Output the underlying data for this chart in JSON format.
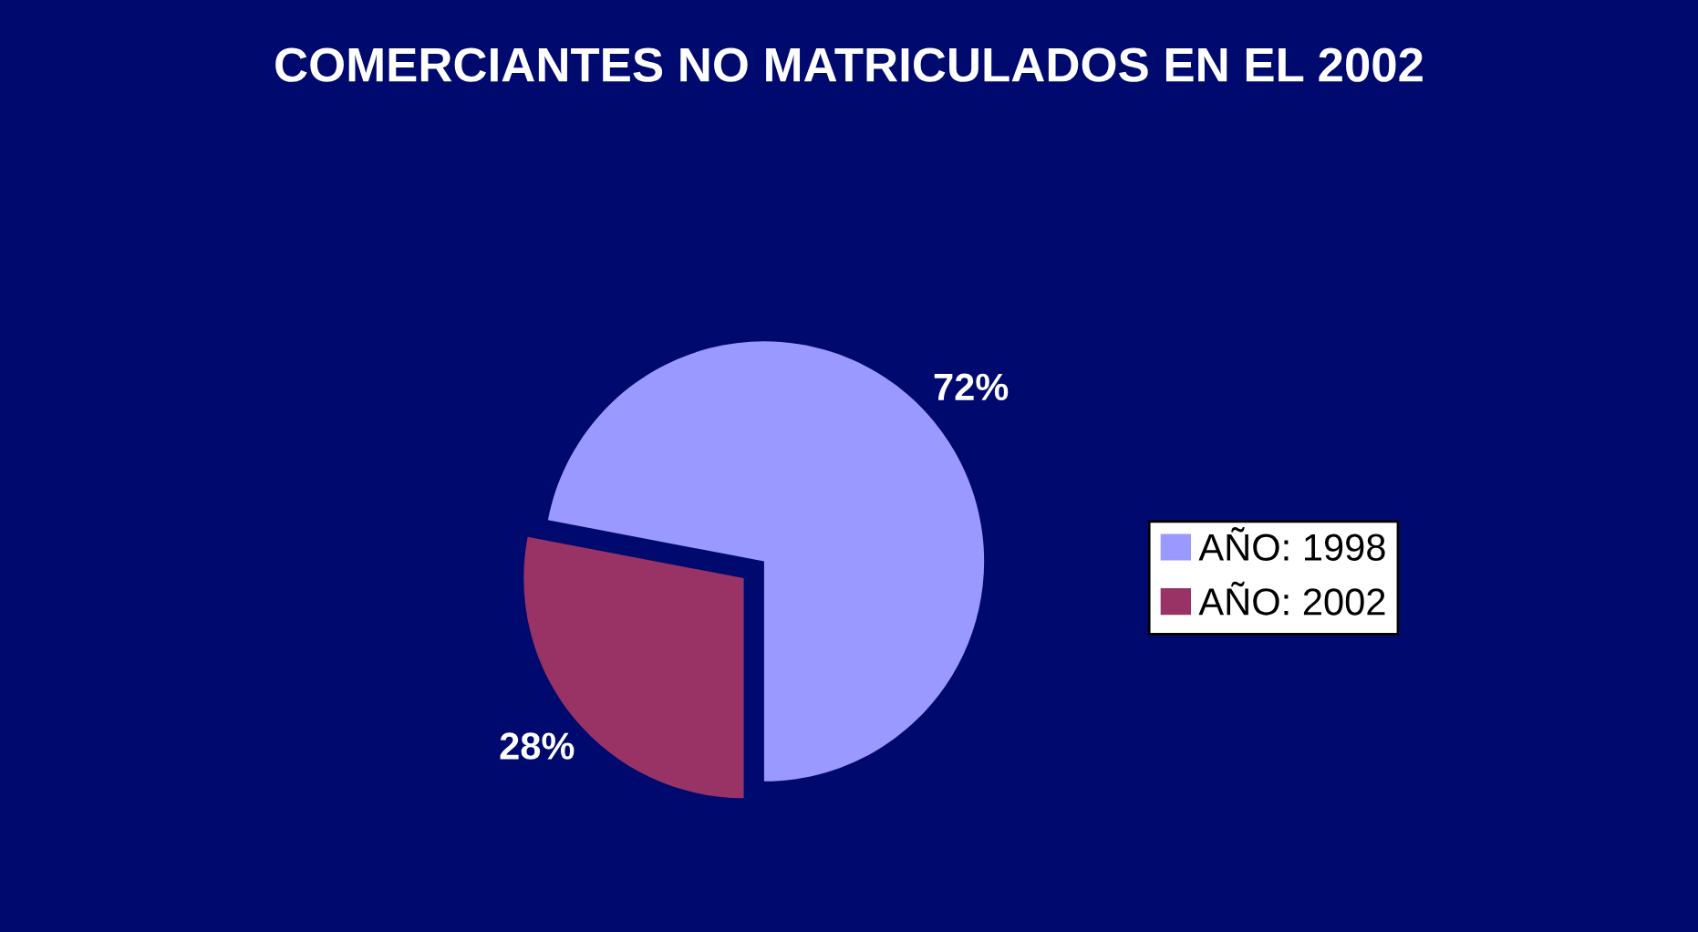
{
  "chart_data": {
    "type": "pie",
    "title": "COMERCIANTES NO MATRICULADOS EN EL 2002",
    "categories": [
      "AÑO: 1998",
      "AÑO: 2002"
    ],
    "values": [
      72,
      28
    ],
    "colors": [
      "#9999ff",
      "#993366"
    ],
    "value_labels": [
      "72%",
      "28%"
    ],
    "legend": "right"
  }
}
